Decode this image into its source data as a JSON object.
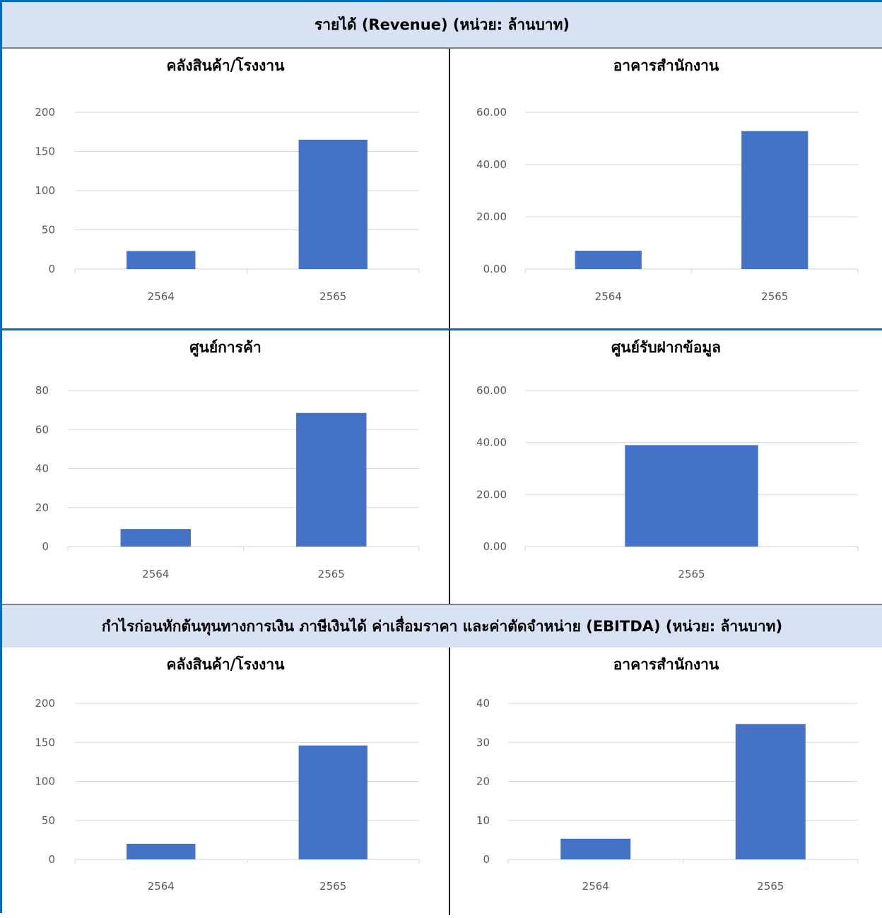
{
  "sections": [
    {
      "title": "รายได้ (Revenue) (หน่วย: ล้านบาท)"
    },
    {
      "title": "กำไรก่อนหักต้นทุนทางการเงิน ภาษีเงินได้ ค่าเสื่อมราคา และค่าตัดจำหน่าย (EBITDA) (หน่วย: ล้านบาท)"
    }
  ],
  "colors": {
    "bar": "#4472c4",
    "grid": "#d9d9d9",
    "axis_text": "#595959",
    "header_bg": "#d9e2f3",
    "frame": "#0a6ab4"
  },
  "chart_data": [
    {
      "type": "bar",
      "title": "คลังสินค้า/โรงงาน",
      "categories": [
        "2564",
        "2565"
      ],
      "values": [
        23,
        165
      ],
      "ylim": [
        0,
        200
      ],
      "yticks": [
        "0",
        "50",
        "100",
        "150",
        "200"
      ],
      "grid": true
    },
    {
      "type": "bar",
      "title": "อาคารสำนักงาน",
      "categories": [
        "2564",
        "2565"
      ],
      "values": [
        7.0,
        52.8
      ],
      "ylim": [
        0,
        60
      ],
      "yticks": [
        "0.00",
        "20.00",
        "40.00",
        "60.00"
      ],
      "grid": true
    },
    {
      "type": "bar",
      "title": "ศูนย์การค้า",
      "categories": [
        "2564",
        "2565"
      ],
      "values": [
        9,
        68.5
      ],
      "ylim": [
        0,
        80
      ],
      "yticks": [
        "0",
        "20",
        "40",
        "60",
        "80"
      ],
      "grid": true
    },
    {
      "type": "bar",
      "title": "ศูนย์รับฝากข้อมูล",
      "categories": [
        "2565"
      ],
      "values": [
        39.0
      ],
      "ylim": [
        0,
        60
      ],
      "yticks": [
        "0.00",
        "20.00",
        "40.00",
        "60.00"
      ],
      "grid": true
    },
    {
      "type": "bar",
      "title": "คลังสินค้า/โรงงาน",
      "categories": [
        "2564",
        "2565"
      ],
      "values": [
        20,
        146
      ],
      "ylim": [
        0,
        200
      ],
      "yticks": [
        "0",
        "50",
        "100",
        "150",
        "200"
      ],
      "grid": true
    },
    {
      "type": "bar",
      "title": "อาคารสำนักงาน",
      "categories": [
        "2564",
        "2565"
      ],
      "values": [
        5.3,
        34.7
      ],
      "ylim": [
        0,
        40
      ],
      "yticks": [
        "0",
        "10",
        "20",
        "30",
        "40"
      ],
      "grid": true
    }
  ]
}
